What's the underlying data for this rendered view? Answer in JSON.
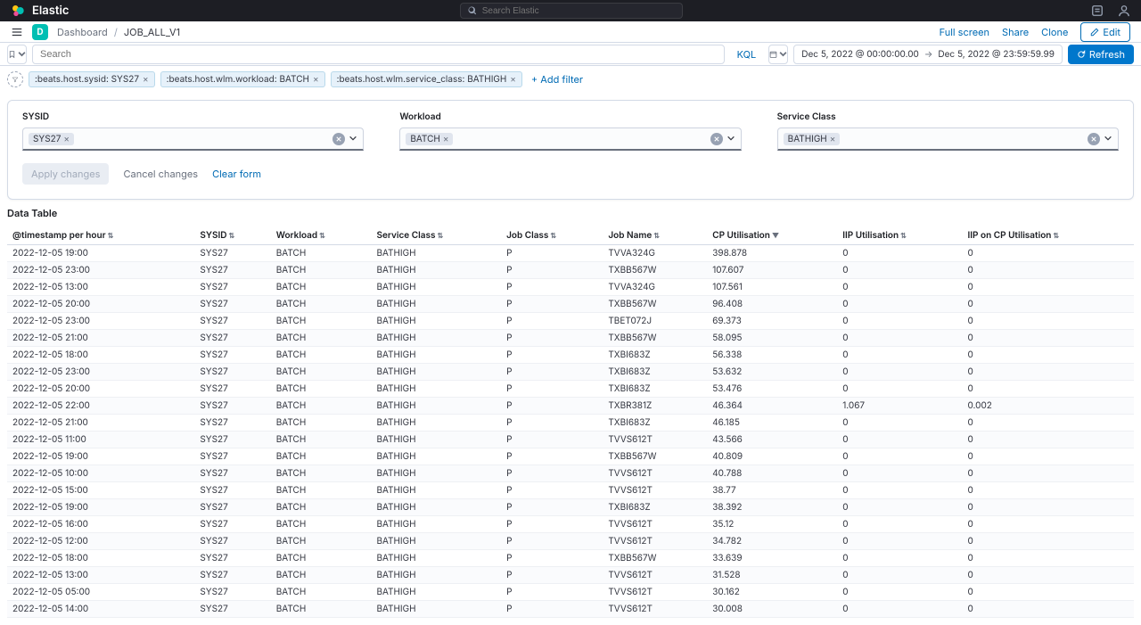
{
  "topbar": {
    "brand": "Elastic",
    "search_placeholder": "Search Elastic"
  },
  "breadcrumb": {
    "app_letter": "D",
    "section": "Dashboard",
    "page": "JOB_ALL_V1"
  },
  "header_actions": {
    "full_screen": "Full screen",
    "share": "Share",
    "clone": "Clone",
    "edit": "Edit"
  },
  "querybar": {
    "search_placeholder": "Search",
    "kql": "KQL",
    "date_from": "Dec 5, 2022 @ 00:00:00.00",
    "date_to": "Dec 5, 2022 @ 23:59:59.99",
    "refresh": "Refresh"
  },
  "filters": {
    "items": [
      {
        "label": ":beats.host.sysid: SYS27"
      },
      {
        "label": ":beats.host.wlm.workload: BATCH"
      },
      {
        "label": ":beats.host.wlm.service_class: BATHIGH"
      }
    ],
    "add_filter": "+ Add filter"
  },
  "controls": {
    "groups": [
      {
        "label": "SYSID",
        "value": "SYS27"
      },
      {
        "label": "Workload",
        "value": "BATCH"
      },
      {
        "label": "Service Class",
        "value": "BATHIGH"
      }
    ],
    "apply": "Apply changes",
    "cancel": "Cancel changes",
    "clear": "Clear form"
  },
  "table": {
    "title": "Data Table",
    "columns": [
      "@timestamp per hour",
      "SYSID",
      "Workload",
      "Service Class",
      "Job Class",
      "Job Name",
      "CP Utilisation",
      "IIP Utilisation",
      "IIP on CP Utilisation"
    ],
    "rows": [
      [
        "2022-12-05 19:00",
        "SYS27",
        "BATCH",
        "BATHIGH",
        "P",
        "TVVA324G",
        "398.878",
        "0",
        "0"
      ],
      [
        "2022-12-05 23:00",
        "SYS27",
        "BATCH",
        "BATHIGH",
        "P",
        "TXBB567W",
        "107.607",
        "0",
        "0"
      ],
      [
        "2022-12-05 13:00",
        "SYS27",
        "BATCH",
        "BATHIGH",
        "P",
        "TVVA324G",
        "107.561",
        "0",
        "0"
      ],
      [
        "2022-12-05 20:00",
        "SYS27",
        "BATCH",
        "BATHIGH",
        "P",
        "TXBB567W",
        "96.408",
        "0",
        "0"
      ],
      [
        "2022-12-05 23:00",
        "SYS27",
        "BATCH",
        "BATHIGH",
        "P",
        "TBET072J",
        "69.373",
        "0",
        "0"
      ],
      [
        "2022-12-05 21:00",
        "SYS27",
        "BATCH",
        "BATHIGH",
        "P",
        "TXBB567W",
        "58.095",
        "0",
        "0"
      ],
      [
        "2022-12-05 18:00",
        "SYS27",
        "BATCH",
        "BATHIGH",
        "P",
        "TXBI683Z",
        "56.338",
        "0",
        "0"
      ],
      [
        "2022-12-05 23:00",
        "SYS27",
        "BATCH",
        "BATHIGH",
        "P",
        "TXBI683Z",
        "53.632",
        "0",
        "0"
      ],
      [
        "2022-12-05 20:00",
        "SYS27",
        "BATCH",
        "BATHIGH",
        "P",
        "TXBI683Z",
        "53.476",
        "0",
        "0"
      ],
      [
        "2022-12-05 22:00",
        "SYS27",
        "BATCH",
        "BATHIGH",
        "P",
        "TXBR381Z",
        "46.364",
        "1.067",
        "0.002"
      ],
      [
        "2022-12-05 21:00",
        "SYS27",
        "BATCH",
        "BATHIGH",
        "P",
        "TXBI683Z",
        "46.185",
        "0",
        "0"
      ],
      [
        "2022-12-05 11:00",
        "SYS27",
        "BATCH",
        "BATHIGH",
        "P",
        "TVVS612T",
        "43.566",
        "0",
        "0"
      ],
      [
        "2022-12-05 19:00",
        "SYS27",
        "BATCH",
        "BATHIGH",
        "P",
        "TXBB567W",
        "40.809",
        "0",
        "0"
      ],
      [
        "2022-12-05 10:00",
        "SYS27",
        "BATCH",
        "BATHIGH",
        "P",
        "TVVS612T",
        "40.788",
        "0",
        "0"
      ],
      [
        "2022-12-05 15:00",
        "SYS27",
        "BATCH",
        "BATHIGH",
        "P",
        "TVVS612T",
        "38.77",
        "0",
        "0"
      ],
      [
        "2022-12-05 19:00",
        "SYS27",
        "BATCH",
        "BATHIGH",
        "P",
        "TXBI683Z",
        "38.392",
        "0",
        "0"
      ],
      [
        "2022-12-05 16:00",
        "SYS27",
        "BATCH",
        "BATHIGH",
        "P",
        "TVVS612T",
        "35.12",
        "0",
        "0"
      ],
      [
        "2022-12-05 12:00",
        "SYS27",
        "BATCH",
        "BATHIGH",
        "P",
        "TVVS612T",
        "34.782",
        "0",
        "0"
      ],
      [
        "2022-12-05 18:00",
        "SYS27",
        "BATCH",
        "BATHIGH",
        "P",
        "TXBB567W",
        "33.639",
        "0",
        "0"
      ],
      [
        "2022-12-05 13:00",
        "SYS27",
        "BATCH",
        "BATHIGH",
        "P",
        "TVVS612T",
        "31.528",
        "0",
        "0"
      ],
      [
        "2022-12-05 05:00",
        "SYS27",
        "BATCH",
        "BATHIGH",
        "P",
        "TVVS612T",
        "30.162",
        "0",
        "0"
      ],
      [
        "2022-12-05 14:00",
        "SYS27",
        "BATCH",
        "BATHIGH",
        "P",
        "TVVS612T",
        "30.008",
        "0",
        "0"
      ]
    ]
  },
  "colors": {
    "topbar_bg": "#1d1e24",
    "accent": "#006bb4",
    "teal": "#00bfb3",
    "refresh_bg": "#0077cc",
    "pill_bg": "#e6f1fa",
    "border": "#d3dae6"
  }
}
